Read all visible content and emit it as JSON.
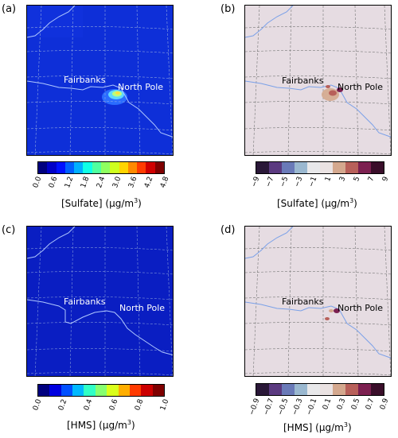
{
  "panels": [
    {
      "letter": "(a)",
      "city1": "Fairbanks",
      "city2": "North Pole",
      "cbar_label": "[Sulfate] (μg/m",
      "cbar_label_sup": "3",
      "cbar_label_end": ")",
      "ticks": [
        "0.0",
        "0.6",
        "1.2",
        "1.8",
        "2.4",
        "3.0",
        "3.6",
        "4.2",
        "4.8"
      ]
    },
    {
      "letter": "(b)",
      "city1": "Fairbanks",
      "city2": "North Pole",
      "cbar_label": "[Sulfate] (μg/m",
      "cbar_label_sup": "3",
      "cbar_label_end": ")",
      "ticks": [
        "−9",
        "−7",
        "−5",
        "−3",
        "−1",
        "1",
        "3",
        "5",
        "7",
        "9"
      ]
    },
    {
      "letter": "(c)",
      "city1": "Fairbanks",
      "city2": "North Pole",
      "cbar_label": "[HMS] (μg/m",
      "cbar_label_sup": "3",
      "cbar_label_end": ")",
      "ticks": [
        "0.0",
        "0.2",
        "0.4",
        "0.6",
        "0.8",
        "1.0"
      ]
    },
    {
      "letter": "(d)",
      "city1": "Fairbanks",
      "city2": "North Pole",
      "cbar_label": "[HMS] (μg/m",
      "cbar_label_sup": "3",
      "cbar_label_end": ")",
      "ticks": [
        "−0.9",
        "−0.7",
        "−0.5",
        "−0.3",
        "−0.1",
        "0.1",
        "0.3",
        "0.5",
        "0.7",
        "0.9"
      ]
    }
  ],
  "colors": {
    "jet": [
      "#00007f",
      "#0000c8",
      "#0010ff",
      "#0060ff",
      "#00b0ff",
      "#10ffe6",
      "#50ff9f",
      "#8fff60",
      "#cfff1f",
      "#ffd400",
      "#ff8a00",
      "#ff3c00",
      "#d00000",
      "#7f0000"
    ],
    "jet_hms": [
      "#00007f",
      "#0000e0",
      "#0050ff",
      "#00b8ff",
      "#30ffc6",
      "#86ff70",
      "#daff1c",
      "#ffae00",
      "#ff3a00",
      "#cc0000",
      "#7f0000"
    ],
    "diverging": [
      "#2a1838",
      "#5b3a80",
      "#6a7ab8",
      "#9ab8d0",
      "#e8e8ea",
      "#eae2e2",
      "#d4a88e",
      "#b8605a",
      "#7c2050",
      "#3a0e2a"
    ],
    "map_blue": "#0e2fd8",
    "map_blue_hms": "#0a1ec2",
    "map_diff_bg": "#e6dce2",
    "river": "#9fb8f5",
    "river_diff": "#7aa0e8"
  }
}
